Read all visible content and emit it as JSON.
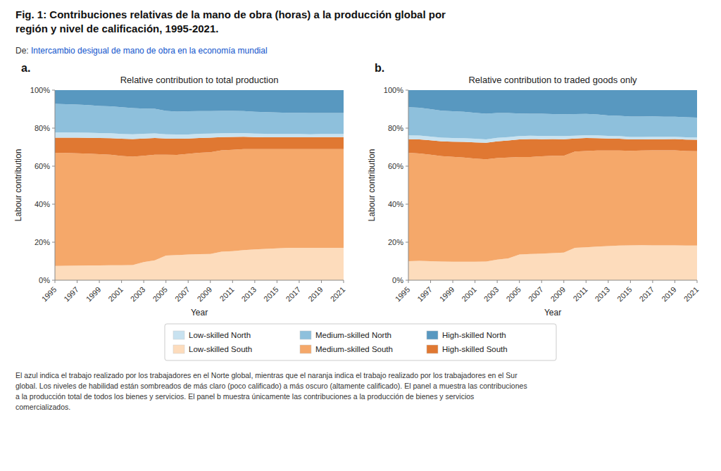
{
  "title": "Fig. 1: Contribuciones relativas de la mano de obra (horas) a la producción global por\nregión y nivel de calificación, 1995-2021.",
  "subtitle": [
    "De: ",
    "Intercambio desigual de mano de obra en la economía mundial"
  ],
  "annotations": [
    "El azul indica el trabajo realizado por los trabajadores en el Norte global, mientras que el naranja indica el trabajo realizado por los trabajadores en el Sur\nglobal. Los niveles de habilidad están sombreados de más claro (poco calificado) a más oscuro (altamente calificado). El panel a muestra las contribuciones\na la producción total de todos los bienes y servicios. El panel b muestra únicamente las contribuciones a la producción de bienes y servicios\ncomercializados."
  ],
  "chart_data": [
    {
      "type": "area",
      "stacked": true,
      "legend": "bottom",
      "title": "Relative contribution to total production",
      "annotations": [
        "a."
      ],
      "xlabel": "Year",
      "ylabel": "Labour contribution",
      "x": [
        1995,
        1996,
        1997,
        1998,
        1999,
        2000,
        2001,
        2002,
        2003,
        2004,
        2005,
        2006,
        2007,
        2008,
        2009,
        2010,
        2011,
        2012,
        2013,
        2014,
        2015,
        2016,
        2017,
        2018,
        2019,
        2020,
        2021
      ],
      "xlim": [
        1995,
        2021
      ],
      "xticks": [
        1995,
        1997,
        1999,
        2001,
        2003,
        2005,
        2007,
        2009,
        2011,
        2013,
        2015,
        2017,
        2019,
        2021
      ],
      "ylim": [
        0,
        1
      ],
      "yticks": [
        {
          "value": 0,
          "label": "0%"
        },
        {
          "value": 0.2,
          "label": "20%"
        },
        {
          "value": 0.4,
          "label": "40%"
        },
        {
          "value": 0.6,
          "label": "60%"
        },
        {
          "value": 0.8,
          "label": "80%"
        },
        {
          "value": 1.0,
          "label": "100%"
        }
      ],
      "series": [
        {
          "name": "Low-skilled South",
          "color": "#FDDCBC",
          "values": [
            0.075,
            0.076,
            0.077,
            0.078,
            0.078,
            0.079,
            0.079,
            0.08,
            0.095,
            0.105,
            0.13,
            0.132,
            0.135,
            0.137,
            0.138,
            0.15,
            0.153,
            0.158,
            0.162,
            0.165,
            0.168,
            0.17,
            0.17,
            0.17,
            0.17,
            0.17,
            0.17
          ]
        },
        {
          "name": "Medium-skilled South",
          "color": "#F5A86A",
          "values": [
            0.595,
            0.593,
            0.591,
            0.588,
            0.585,
            0.581,
            0.575,
            0.57,
            0.56,
            0.555,
            0.53,
            0.527,
            0.53,
            0.533,
            0.535,
            0.533,
            0.533,
            0.532,
            0.528,
            0.525,
            0.522,
            0.52,
            0.52,
            0.52,
            0.52,
            0.52,
            0.52
          ]
        },
        {
          "name": "High-skilled South",
          "color": "#E07832",
          "values": [
            0.08,
            0.081,
            0.082,
            0.083,
            0.085,
            0.087,
            0.09,
            0.093,
            0.09,
            0.088,
            0.085,
            0.085,
            0.08,
            0.078,
            0.077,
            0.07,
            0.068,
            0.065,
            0.063,
            0.062,
            0.062,
            0.062,
            0.062,
            0.062,
            0.063,
            0.063,
            0.063
          ]
        },
        {
          "name": "Low-skilled North",
          "color": "#C8E2F0",
          "values": [
            0.028,
            0.028,
            0.027,
            0.027,
            0.026,
            0.026,
            0.025,
            0.025,
            0.025,
            0.024,
            0.023,
            0.023,
            0.022,
            0.022,
            0.021,
            0.02,
            0.02,
            0.019,
            0.018,
            0.018,
            0.017,
            0.017,
            0.017,
            0.016,
            0.016,
            0.016,
            0.016
          ]
        },
        {
          "name": "Medium-skilled North",
          "color": "#8EC0DC",
          "values": [
            0.15,
            0.148,
            0.147,
            0.145,
            0.143,
            0.142,
            0.141,
            0.138,
            0.133,
            0.13,
            0.123,
            0.12,
            0.122,
            0.12,
            0.119,
            0.118,
            0.117,
            0.116,
            0.115,
            0.114,
            0.113,
            0.112,
            0.112,
            0.112,
            0.111,
            0.111,
            0.111
          ]
        },
        {
          "name": "High-skilled North",
          "color": "#5898C0",
          "values": [
            0.072,
            0.074,
            0.076,
            0.079,
            0.083,
            0.085,
            0.09,
            0.094,
            0.097,
            0.098,
            0.109,
            0.113,
            0.111,
            0.11,
            0.11,
            0.109,
            0.109,
            0.11,
            0.114,
            0.116,
            0.118,
            0.119,
            0.119,
            0.12,
            0.12,
            0.12,
            0.12
          ]
        }
      ]
    },
    {
      "type": "area",
      "stacked": true,
      "title": "Relative contribution to traded goods only",
      "annotations": [
        "b."
      ],
      "xlabel": "Year",
      "ylabel": "Labour contribution",
      "x": [
        1995,
        1996,
        1997,
        1998,
        1999,
        2000,
        2001,
        2002,
        2003,
        2004,
        2005,
        2006,
        2007,
        2008,
        2009,
        2010,
        2011,
        2012,
        2013,
        2014,
        2015,
        2016,
        2017,
        2018,
        2019,
        2020,
        2021
      ],
      "xlim": [
        1995,
        2021
      ],
      "xticks": [
        1995,
        1997,
        1999,
        2001,
        2003,
        2005,
        2007,
        2009,
        2011,
        2013,
        2015,
        2017,
        2019,
        2021
      ],
      "ylim": [
        0,
        1
      ],
      "yticks": [
        {
          "value": 0,
          "label": "0%"
        },
        {
          "value": 0.2,
          "label": "20%"
        },
        {
          "value": 0.4,
          "label": "40%"
        },
        {
          "value": 0.6,
          "label": "60%"
        },
        {
          "value": 0.8,
          "label": "80%"
        },
        {
          "value": 1.0,
          "label": "100%"
        }
      ],
      "series": [
        {
          "name": "Low-skilled South",
          "color": "#FDDCBC",
          "values": [
            0.1,
            0.102,
            0.1,
            0.098,
            0.097,
            0.097,
            0.097,
            0.098,
            0.108,
            0.115,
            0.135,
            0.138,
            0.14,
            0.143,
            0.145,
            0.17,
            0.173,
            0.177,
            0.18,
            0.182,
            0.183,
            0.184,
            0.183,
            0.183,
            0.183,
            0.182,
            0.182
          ]
        },
        {
          "name": "Medium-skilled South",
          "color": "#F5A86A",
          "values": [
            0.57,
            0.565,
            0.56,
            0.555,
            0.552,
            0.548,
            0.543,
            0.538,
            0.535,
            0.53,
            0.513,
            0.51,
            0.512,
            0.512,
            0.51,
            0.507,
            0.507,
            0.505,
            0.502,
            0.5,
            0.498,
            0.498,
            0.5,
            0.5,
            0.5,
            0.498,
            0.497
          ]
        },
        {
          "name": "High-skilled South",
          "color": "#E07832",
          "values": [
            0.072,
            0.074,
            0.076,
            0.078,
            0.08,
            0.083,
            0.085,
            0.087,
            0.088,
            0.09,
            0.093,
            0.095,
            0.09,
            0.088,
            0.087,
            0.068,
            0.068,
            0.065,
            0.063,
            0.062,
            0.06,
            0.059,
            0.059,
            0.059,
            0.06,
            0.06,
            0.06
          ]
        },
        {
          "name": "Low-skilled North",
          "color": "#C8E2F0",
          "values": [
            0.02,
            0.02,
            0.02,
            0.019,
            0.019,
            0.019,
            0.019,
            0.018,
            0.018,
            0.018,
            0.017,
            0.017,
            0.017,
            0.016,
            0.016,
            0.015,
            0.015,
            0.015,
            0.014,
            0.014,
            0.013,
            0.013,
            0.013,
            0.013,
            0.012,
            0.012,
            0.012
          ]
        },
        {
          "name": "Medium-skilled North",
          "color": "#8EC0DC",
          "values": [
            0.148,
            0.146,
            0.144,
            0.142,
            0.141,
            0.139,
            0.137,
            0.135,
            0.131,
            0.127,
            0.119,
            0.116,
            0.117,
            0.115,
            0.115,
            0.114,
            0.112,
            0.11,
            0.108,
            0.107,
            0.107,
            0.107,
            0.107,
            0.105,
            0.105,
            0.105,
            0.105
          ]
        },
        {
          "name": "High-skilled North",
          "color": "#5898C0",
          "values": [
            0.09,
            0.093,
            0.1,
            0.108,
            0.111,
            0.114,
            0.119,
            0.124,
            0.12,
            0.12,
            0.123,
            0.124,
            0.124,
            0.126,
            0.127,
            0.126,
            0.125,
            0.128,
            0.133,
            0.135,
            0.139,
            0.139,
            0.138,
            0.14,
            0.14,
            0.143,
            0.144
          ]
        }
      ]
    }
  ]
}
